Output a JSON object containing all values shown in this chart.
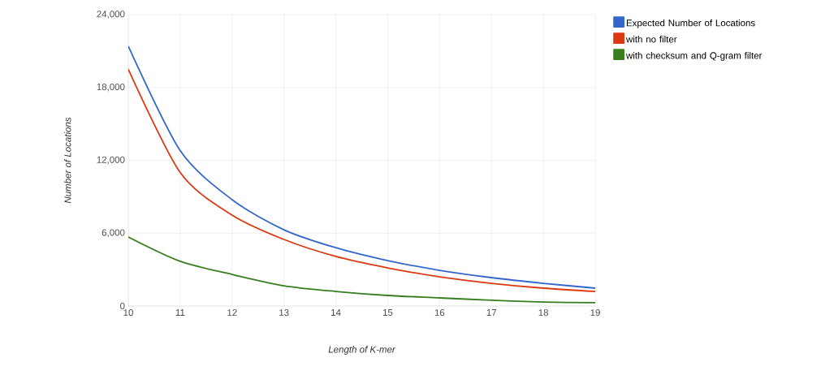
{
  "chart_data": {
    "type": "line",
    "xlabel": "Length of K-mer",
    "ylabel": "Number of Locations",
    "x": [
      10,
      11,
      12,
      13,
      14,
      15,
      16,
      17,
      18,
      19
    ],
    "series": [
      {
        "name": "Expected Number of Locations",
        "color": "#3366cc",
        "values": [
          21400,
          12800,
          8760,
          6280,
          4800,
          3740,
          2940,
          2340,
          1870,
          1470
        ]
      },
      {
        "name": "with no filter",
        "color": "#dc3912",
        "values": [
          19500,
          11000,
          7490,
          5480,
          4080,
          3140,
          2400,
          1870,
          1470,
          1200
        ]
      },
      {
        "name": "with checksum and Q-gram filter",
        "color": "#387d1f",
        "values": [
          5680,
          3680,
          2600,
          1670,
          1200,
          870,
          670,
          470,
          330,
          270
        ]
      }
    ],
    "xlim": [
      10,
      19
    ],
    "ylim": [
      0,
      24000
    ],
    "xticks": [
      10,
      11,
      12,
      13,
      14,
      15,
      16,
      17,
      18,
      19
    ],
    "yticks": [
      0,
      {
        "value": 6000,
        "label": "6,000"
      },
      {
        "value": 12000,
        "label": "12,000"
      },
      {
        "value": 18000,
        "label": "18,000"
      },
      {
        "value": 24000,
        "label": "24,000"
      }
    ],
    "grid": true,
    "legend": "top right",
    "marker": "none",
    "line_style": "solid"
  }
}
